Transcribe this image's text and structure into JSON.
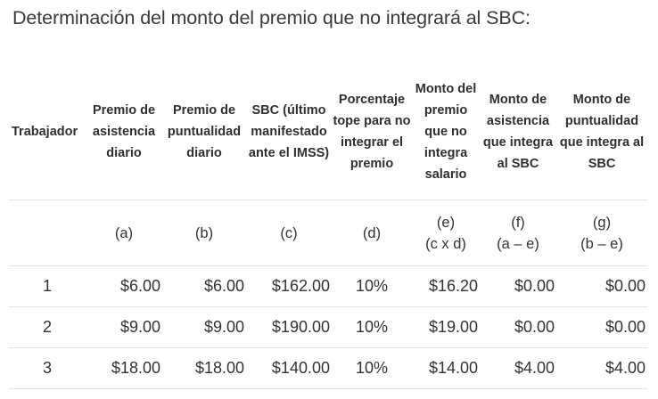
{
  "heading": "Determinación del monto del premio que no integrará al SBC:",
  "table": {
    "headers": [
      "Trabajador",
      "Premio de asistencia diario",
      "Premio de puntualidad diario",
      "SBC (último manifestado ante el IMSS)",
      "Porcentaje tope para no integrar el premio",
      "Monto del premio que no integra salario",
      "Monto de asistencia que integra al SBC",
      "Monto de puntualidad que integra al SBC"
    ],
    "formula_row": {
      "a": "(a)",
      "b": "(b)",
      "c": "(c)",
      "d": "(d)",
      "e": "(e)",
      "e_formula": "(c x d)",
      "f": "(f)",
      "f_formula": "(a – e)",
      "g": "(g)",
      "g_formula": "(b – e)"
    },
    "rows": [
      {
        "worker": "1",
        "asistencia": "$6.00",
        "puntualidad": "$6.00",
        "sbc": "$162.00",
        "porcentaje": "10%",
        "no_integra": "$16.20",
        "asistencia_integra": "$0.00",
        "puntualidad_integra": "$0.00"
      },
      {
        "worker": "2",
        "asistencia": "$9.00",
        "puntualidad": "$9.00",
        "sbc": "$190.00",
        "porcentaje": "10%",
        "no_integra": "$19.00",
        "asistencia_integra": "$0.00",
        "puntualidad_integra": "$0.00"
      },
      {
        "worker": "3",
        "asistencia": "$18.00",
        "puntualidad": "$18.00",
        "sbc": "$140.00",
        "porcentaje": "10%",
        "no_integra": "$14.00",
        "asistencia_integra": "$4.00",
        "puntualidad_integra": "$4.00"
      }
    ]
  }
}
